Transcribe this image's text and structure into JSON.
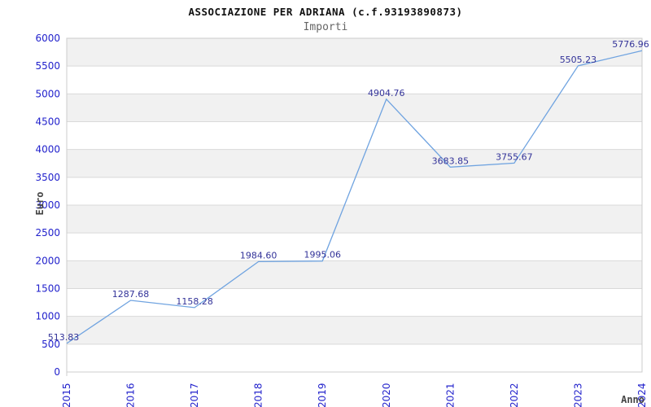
{
  "chart_data": {
    "type": "line",
    "title": "ASSOCIAZIONE PER ADRIANA (c.f.93193890873)",
    "subtitle": "Importi",
    "xlabel": "Anno",
    "ylabel": "Euro",
    "categories": [
      "2015",
      "2016",
      "2017",
      "2018",
      "2019",
      "2020",
      "2021",
      "2022",
      "2023",
      "2024"
    ],
    "values": [
      513.83,
      1287.68,
      1158.28,
      1984.6,
      1995.06,
      4904.76,
      3683.85,
      3755.67,
      5505.23,
      5776.96
    ],
    "point_labels": [
      "513.83",
      "1287.68",
      "1158.28",
      "1984.60",
      "1995.06",
      "4904.76",
      "3683.85",
      "3755.67",
      "5505.23",
      "5776.96"
    ],
    "ylim": [
      0,
      6000
    ],
    "ytick_step": 500,
    "ytick_labels": [
      "0",
      "500",
      "1000",
      "1500",
      "2000",
      "2500",
      "3000",
      "3500",
      "4000",
      "4500",
      "5000",
      "5500",
      "6000"
    ],
    "grid": true,
    "legend": "none",
    "colors": {
      "line": "#6fa3e0",
      "point_label": "#333399",
      "tick_label": "#2222cc",
      "band": "#f1f1f1",
      "grid_line": "#d9d9d9",
      "border": "#cccccc",
      "axis_title": "#444444",
      "title": "#111111",
      "subtitle": "#666666"
    }
  }
}
